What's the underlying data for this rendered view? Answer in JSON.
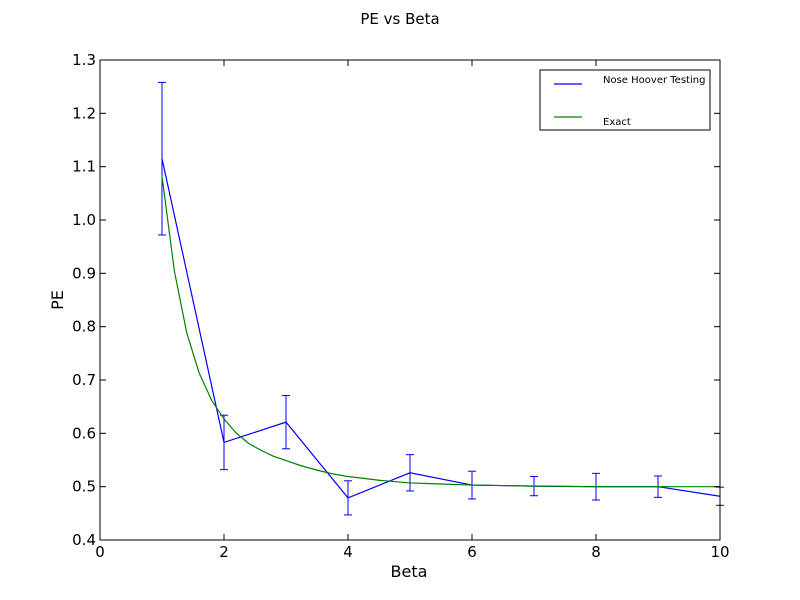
{
  "chart_data": {
    "type": "line",
    "title": "PE vs Beta",
    "xlabel": "Beta",
    "ylabel": "PE",
    "xlim": [
      0,
      10
    ],
    "ylim": [
      0.4,
      1.3
    ],
    "xticks": [
      0,
      2,
      4,
      6,
      8,
      10
    ],
    "yticks": [
      0.4,
      0.5,
      0.6,
      0.7,
      0.8,
      0.9,
      1.0,
      1.1,
      1.2,
      1.3
    ],
    "grid": false,
    "legend_position": "top-right",
    "series": [
      {
        "name": "Nose Hoover Testing",
        "color": "#0000ff",
        "style": "line-errorbar",
        "x": [
          1,
          2,
          3,
          4,
          5,
          6,
          7,
          8,
          9,
          10
        ],
        "y": [
          1.115,
          0.583,
          0.621,
          0.479,
          0.526,
          0.503,
          0.501,
          0.5,
          0.5,
          0.482
        ],
        "yerr": [
          0.143,
          0.051,
          0.05,
          0.032,
          0.034,
          0.026,
          0.018,
          0.025,
          0.02,
          0.017
        ]
      },
      {
        "name": "Exact",
        "color": "#008000",
        "style": "line",
        "x": [
          1.0,
          1.2,
          1.4,
          1.6,
          1.8,
          2.0,
          2.2,
          2.4,
          2.6,
          2.8,
          3.0,
          3.25,
          3.5,
          3.75,
          4.0,
          4.5,
          5.0,
          5.5,
          6.0,
          7.0,
          8.0,
          9.0,
          10.0
        ],
        "y": [
          1.082,
          0.904,
          0.788,
          0.713,
          0.662,
          0.627,
          0.6,
          0.581,
          0.568,
          0.557,
          0.549,
          0.539,
          0.531,
          0.524,
          0.519,
          0.512,
          0.507,
          0.505,
          0.503,
          0.501,
          0.5,
          0.5,
          0.5
        ]
      }
    ]
  }
}
